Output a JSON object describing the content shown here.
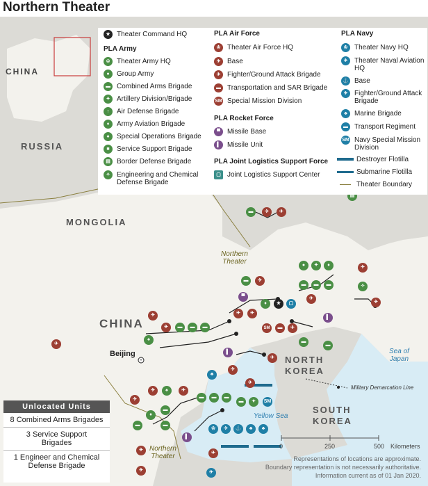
{
  "title": "Northern Theater",
  "countries": {
    "china_inset": "CHINA",
    "russia": "RUSSIA",
    "mongolia": "MONGOLIA",
    "china": "CHINA",
    "north_korea": "NORTH\nKOREA",
    "south_korea": "SOUTH\nKOREA"
  },
  "seas": {
    "japan": "Sea of\nJapan",
    "yellow": "Yellow Sea"
  },
  "theater_labels": {
    "north": "Northern\nTheater",
    "south": "Northern\nTheater"
  },
  "places": {
    "beijing": "Beijing",
    "dml": "Military Demarcation Line"
  },
  "legend": {
    "hq": "Theater Command HQ",
    "army": {
      "heading": "PLA Army",
      "items": [
        "Theater Army HQ",
        "Group Army",
        "Combined Arms Brigade",
        "Artillery Division/Brigade",
        "Air Defense Brigade",
        "Army Aviation Brigade",
        "Special Operations Brigade",
        "Service Support Brigade",
        "Border Defense Brigade",
        "Engineering and Chemical Defense Brigade"
      ]
    },
    "airforce": {
      "heading": "PLA Air Force",
      "items": [
        "Theater Air Force HQ",
        "Base",
        "Fighter/Ground Attack Brigade",
        "Transportation and SAR Brigade",
        "Special Mission Division"
      ]
    },
    "rocket": {
      "heading": "PLA Rocket Force",
      "items": [
        "Missile Base",
        "Missile Unit"
      ]
    },
    "logistics": {
      "heading": "PLA Joint Logistics Support Force",
      "items": [
        "Joint Logistics Support Center"
      ]
    },
    "navy": {
      "heading": "PLA Navy",
      "items": [
        "Theater Navy HQ",
        "Theater Naval Aviation HQ",
        "Base",
        "Fighter/Ground Attack Brigade",
        "Marine Brigade",
        "Transport Regiment",
        "Navy Special Mission Division",
        "Destroyer Flotilla",
        "Submarine Flotilla",
        "Theater Boundary"
      ]
    },
    "sm": "SM"
  },
  "unlocated": {
    "heading": "Unlocated Units",
    "items": [
      "8 Combined Arms Brigades",
      "3 Service Support Brigades",
      "1 Engineer and Chemical Defense Brigade"
    ]
  },
  "scale": {
    "ticks": [
      "0",
      "250",
      "500"
    ],
    "unit": "Kilometers"
  },
  "notes": [
    "Representations of locations are approximate.",
    "Boundary representation is not necessarily authoritative.",
    "Information current as of 01 Jan 2020."
  ],
  "colors": {
    "army": "#4a8f45",
    "airforce": "#9c3f33",
    "navy": "#1f7fa6",
    "rocket": "#7a4e8c",
    "logistics": "#3b8f8a",
    "land": "#f3f2ed",
    "other_land": "#dcdbd6",
    "water": "#d8ecf5",
    "boundary": "#8a7f3e"
  }
}
